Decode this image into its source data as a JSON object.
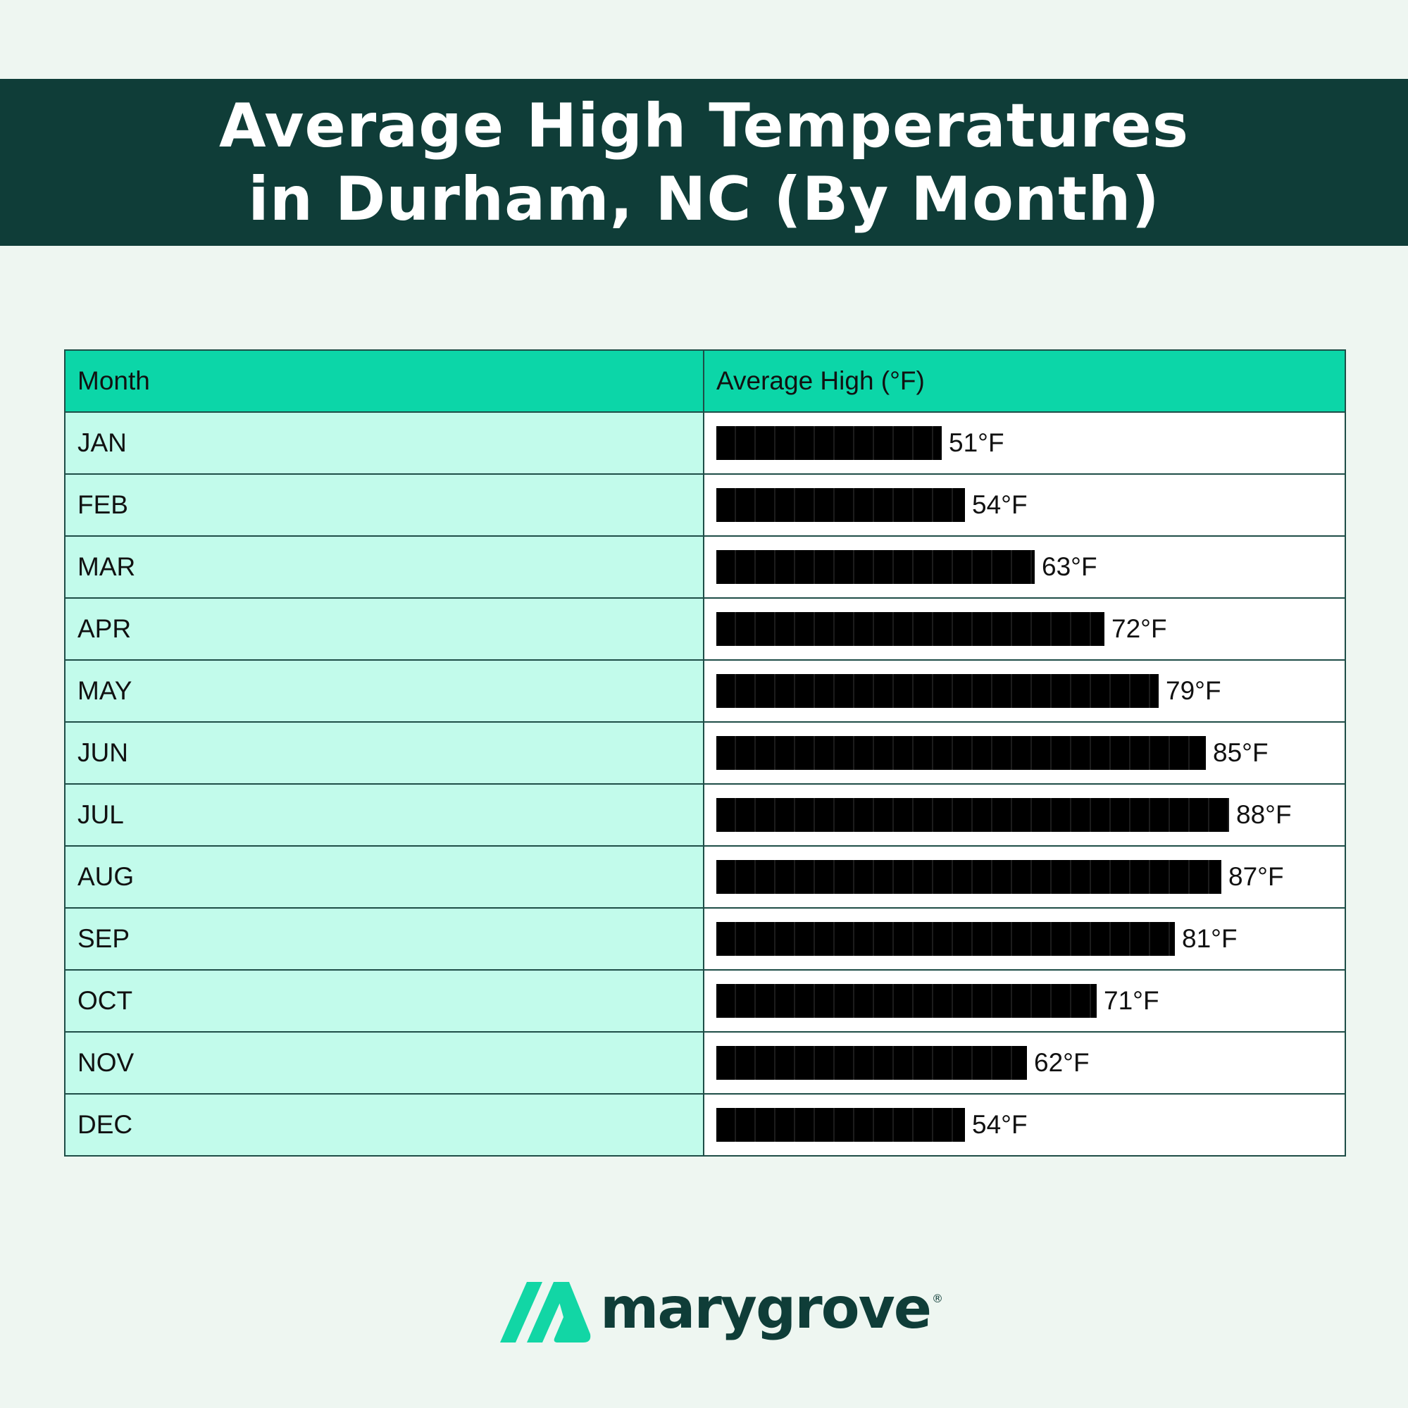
{
  "title": "Average High Temperatures in Durham, NC (By Month)",
  "brand": {
    "name": "marygrove",
    "registered": "®",
    "mark_color": "#12d6a5",
    "text_color": "#0f3d38"
  },
  "colors": {
    "banner": "#0f3d38",
    "header_row": "#0cd6a8",
    "month_column": "#c2fbeb",
    "bar": "#000000"
  },
  "chart_data": {
    "type": "table",
    "columns": [
      "Month",
      "Average High (°F)"
    ],
    "unit": "°F",
    "scale_max": 100,
    "rows": [
      {
        "month": "JAN",
        "value": 51,
        "label": "51°F"
      },
      {
        "month": "FEB",
        "value": 54,
        "label": "54°F"
      },
      {
        "month": "MAR",
        "value": 63,
        "label": "63°F"
      },
      {
        "month": "APR",
        "value": 72,
        "label": "72°F"
      },
      {
        "month": "MAY",
        "value": 79,
        "label": "79°F"
      },
      {
        "month": "JUN",
        "value": 85,
        "label": "85°F"
      },
      {
        "month": "JUL",
        "value": 88,
        "label": "88°F"
      },
      {
        "month": "AUG",
        "value": 87,
        "label": "87°F"
      },
      {
        "month": "SEP",
        "value": 81,
        "label": "81°F"
      },
      {
        "month": "OCT",
        "value": 71,
        "label": "71°F"
      },
      {
        "month": "NOV",
        "value": 62,
        "label": "62°F"
      },
      {
        "month": "DEC",
        "value": 54,
        "label": "54°F"
      }
    ]
  }
}
